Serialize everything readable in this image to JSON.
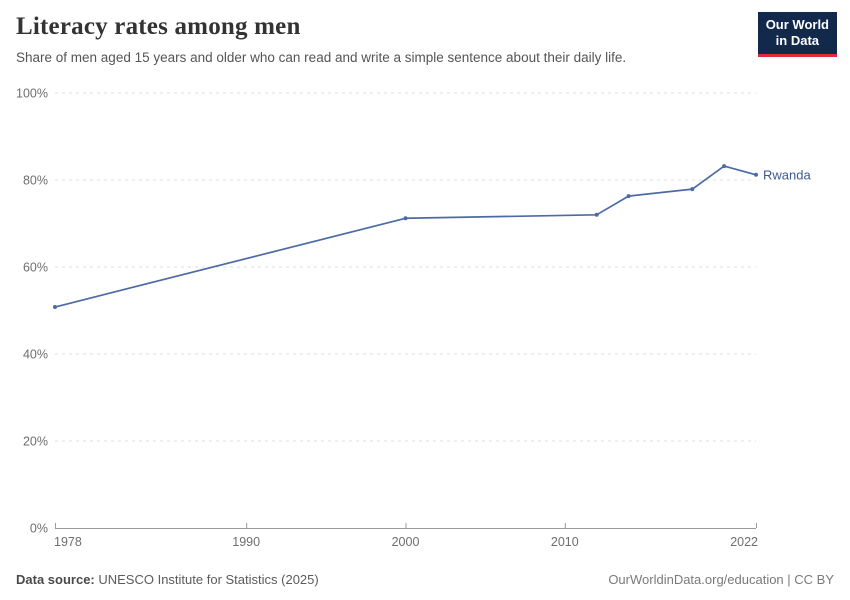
{
  "header": {
    "title": "Literacy rates among men",
    "subtitle": "Share of men aged 15 years and older who can read and write a simple sentence about their daily life."
  },
  "logo": {
    "line1": "Our World",
    "line2": "in Data",
    "bg_color": "#12294b",
    "accent_color": "#dc2c37"
  },
  "chart_data": {
    "type": "line",
    "title": "Literacy rates among men",
    "x": [
      1978,
      2000,
      2012,
      2014,
      2018,
      2020,
      2022
    ],
    "series": [
      {
        "name": "Rwanda",
        "values": [
          50.8,
          71.2,
          72,
          76.3,
          77.9,
          83.2,
          81.2
        ]
      }
    ],
    "xlabel": "",
    "ylabel": "",
    "xlim": [
      1978,
      2022
    ],
    "ylim": [
      0,
      100
    ],
    "x_ticks": [
      {
        "value": 1978,
        "label": "1978"
      },
      {
        "value": 1990,
        "label": "1990"
      },
      {
        "value": 2000,
        "label": "2000"
      },
      {
        "value": 2010,
        "label": "2010"
      },
      {
        "value": 2022,
        "label": "2022"
      }
    ],
    "y_ticks": [
      {
        "value": 0,
        "label": "0%"
      },
      {
        "value": 20,
        "label": "20%"
      },
      {
        "value": 40,
        "label": "40%"
      },
      {
        "value": 60,
        "label": "60%"
      },
      {
        "value": 80,
        "label": "80%"
      },
      {
        "value": 100,
        "label": "100%"
      }
    ],
    "grid": "horizontal-dashed",
    "legend_position": "end-of-line",
    "end_label": "Rwanda",
    "colors": {
      "line": "#4c6ba5",
      "entity_label": "#3d5a8f",
      "gridline": "#dedede",
      "axis": "#9a9a9a",
      "tick_text": "#6e6e6e"
    }
  },
  "footer": {
    "source_label": "Data source:",
    "source_text": " UNESCO Institute for Statistics (2025)",
    "credit": "OurWorldinData.org/education | CC BY"
  }
}
